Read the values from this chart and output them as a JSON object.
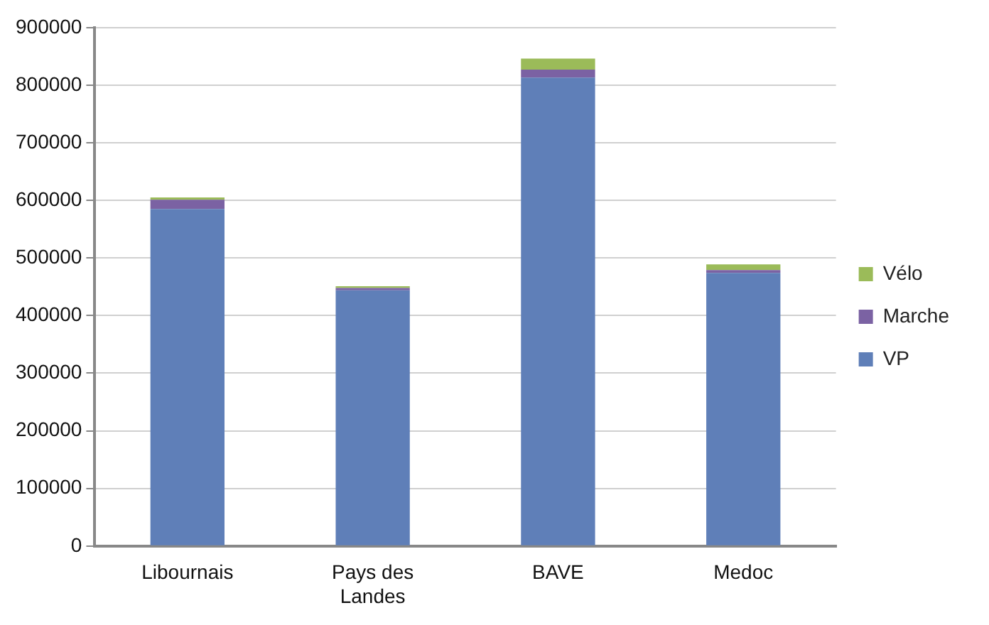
{
  "chart_data": {
    "type": "bar",
    "stacked": true,
    "categories": [
      "Libournais",
      "Pays des Landes",
      "BAVE",
      "Medoc"
    ],
    "series": [
      {
        "name": "VP",
        "color": "#5f7fb8",
        "values": [
          585000,
          444000,
          813000,
          474000
        ]
      },
      {
        "name": "Marche",
        "color": "#7b62a3",
        "values": [
          16000,
          4000,
          14000,
          5000
        ]
      },
      {
        "name": "Vélo",
        "color": "#9bbb59",
        "values": [
          4000,
          3000,
          19000,
          10000
        ]
      }
    ],
    "ylim": [
      0,
      900000
    ],
    "yticks": [
      0,
      100000,
      200000,
      300000,
      400000,
      500000,
      600000,
      700000,
      800000,
      900000
    ],
    "grid": "y",
    "legend": "right"
  }
}
